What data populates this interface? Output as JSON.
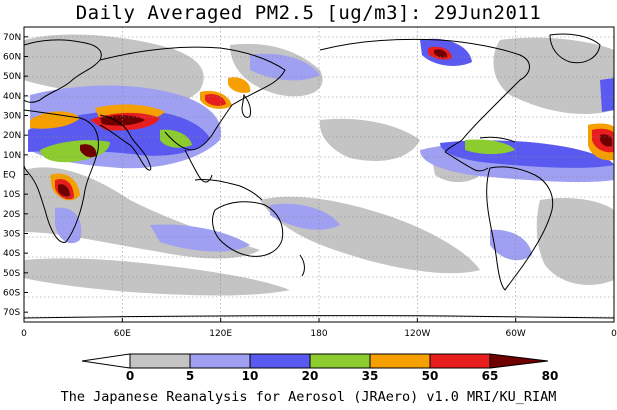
{
  "title": "Daily Averaged PM2.5 [ug/m3]: 29Jun2011",
  "credit": "The Japanese Reanalysis for Aerosol (JRAero) v1.0 MRI/KU_RIAM",
  "map": {
    "projection": "equirectangular",
    "lon_range": [
      0,
      360
    ],
    "lat_range": [
      -75,
      75
    ],
    "grid": "dotted",
    "lat_labels": [
      "70N",
      "60N",
      "50N",
      "40N",
      "30N",
      "20N",
      "10N",
      "EQ",
      "10S",
      "20S",
      "30S",
      "40S",
      "50S",
      "60S",
      "70S"
    ],
    "lat_values": [
      70,
      60,
      50,
      40,
      30,
      20,
      10,
      0,
      -10,
      -20,
      -30,
      -40,
      -50,
      -60,
      -70
    ],
    "lon_labels": [
      "0",
      "60E",
      "120E",
      "180",
      "120W",
      "60W",
      "0"
    ],
    "lon_values": [
      0,
      60,
      120,
      180,
      240,
      300,
      360
    ]
  },
  "colorbar": {
    "labels": [
      "0",
      "5",
      "10",
      "20",
      "35",
      "50",
      "65",
      "80"
    ],
    "colors": [
      "#ffffff",
      "#c4c4c4",
      "#a0a0f2",
      "#5a5af0",
      "#8ccc2e",
      "#f5a000",
      "#e81e1e",
      "#6e0000"
    ],
    "extend": "both"
  },
  "colors": {
    "land_outline": "#000000",
    "ocean": "#ffffff"
  }
}
